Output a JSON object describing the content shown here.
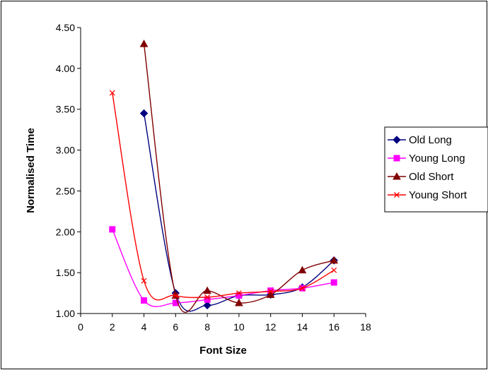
{
  "chart_data": {
    "type": "line",
    "xlabel": "Font Size",
    "ylabel": "Normalised Time",
    "xlim": [
      0,
      18
    ],
    "ylim": [
      1.0,
      4.5
    ],
    "x_ticks": [
      0,
      2,
      4,
      6,
      8,
      10,
      12,
      14,
      16,
      18
    ],
    "x_tick_labels": [
      "0",
      "2",
      "4",
      "6",
      "8",
      "10",
      "12",
      "14",
      "16",
      "18"
    ],
    "y_ticks": [
      1.0,
      1.5,
      2.0,
      2.5,
      3.0,
      3.5,
      4.0,
      4.5
    ],
    "y_tick_labels": [
      "1.00",
      "1.50",
      "2.00",
      "2.50",
      "3.00",
      "3.50",
      "4.00",
      "4.50"
    ],
    "grid": false,
    "smoothed": true,
    "legend_position": "right",
    "series": [
      {
        "name": "Old Long",
        "color": "#000080",
        "marker": "diamond",
        "x": [
          4,
          6,
          8,
          10,
          12,
          14,
          16
        ],
        "y": [
          3.45,
          1.25,
          1.1,
          1.22,
          1.23,
          1.32,
          1.65
        ]
      },
      {
        "name": "Young Long",
        "color": "#FF00FF",
        "marker": "square",
        "x": [
          2,
          4,
          6,
          8,
          10,
          12,
          14,
          16
        ],
        "y": [
          2.03,
          1.16,
          1.13,
          1.17,
          1.22,
          1.28,
          1.31,
          1.38
        ]
      },
      {
        "name": "Old Short",
        "color": "#800000",
        "marker": "triangle",
        "x": [
          4,
          6,
          8,
          10,
          12,
          14,
          16
        ],
        "y": [
          4.3,
          1.22,
          1.28,
          1.13,
          1.23,
          1.53,
          1.65
        ]
      },
      {
        "name": "Young Short",
        "color": "#FF0000",
        "marker": "x",
        "x": [
          2,
          4,
          6,
          8,
          10,
          12,
          14,
          16
        ],
        "y": [
          3.7,
          1.4,
          1.22,
          1.2,
          1.25,
          1.27,
          1.31,
          1.53
        ]
      }
    ]
  }
}
